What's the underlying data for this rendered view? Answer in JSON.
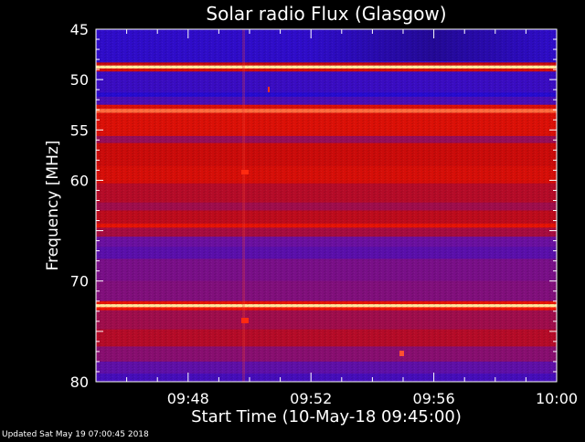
{
  "chart_data": {
    "type": "heatmap",
    "title": "Solar radio Flux (Glasgow)",
    "xlabel": "Start Time (10-May-18 09:45:00)",
    "ylabel": "Frequency [MHz]",
    "x_range": [
      "09:45:00",
      "10:00:00"
    ],
    "y_range_mhz": [
      45,
      80
    ],
    "y_axis_direction": "increasing-downward",
    "xticks": [
      "09:48",
      "09:52",
      "09:56",
      "10:00"
    ],
    "yticks": [
      45,
      50,
      55,
      60,
      65,
      70,
      75,
      80
    ],
    "ytick_labels": [
      "45",
      "50",
      "55",
      "60",
      "",
      "70",
      "",
      "80"
    ],
    "color_scale": {
      "low": "#1a0ad8",
      "mid_low": "#6a10a0",
      "mid": "#c80a0a",
      "high": "#ff1a00",
      "peak": "#ffe79a"
    },
    "bands": [
      {
        "from_mhz": 45.0,
        "to_mhz": 48.3,
        "level": 0.08
      },
      {
        "from_mhz": 48.3,
        "to_mhz": 48.6,
        "level": 0.55
      },
      {
        "from_mhz": 48.6,
        "to_mhz": 48.9,
        "level": 1.0
      },
      {
        "from_mhz": 48.9,
        "to_mhz": 49.2,
        "level": 0.6
      },
      {
        "from_mhz": 49.2,
        "to_mhz": 51.3,
        "level": 0.12
      },
      {
        "from_mhz": 51.3,
        "to_mhz": 51.7,
        "level": 0.04
      },
      {
        "from_mhz": 51.7,
        "to_mhz": 52.5,
        "level": 0.18
      },
      {
        "from_mhz": 52.5,
        "to_mhz": 52.9,
        "level": 0.62
      },
      {
        "from_mhz": 52.9,
        "to_mhz": 53.3,
        "level": 0.85
      },
      {
        "from_mhz": 53.3,
        "to_mhz": 55.6,
        "level": 0.62
      },
      {
        "from_mhz": 55.6,
        "to_mhz": 56.3,
        "level": 0.42
      },
      {
        "from_mhz": 56.3,
        "to_mhz": 58.6,
        "level": 0.56
      },
      {
        "from_mhz": 58.6,
        "to_mhz": 60.3,
        "level": 0.6
      },
      {
        "from_mhz": 60.3,
        "to_mhz": 62.2,
        "level": 0.5
      },
      {
        "from_mhz": 62.2,
        "to_mhz": 63.0,
        "level": 0.44
      },
      {
        "from_mhz": 63.0,
        "to_mhz": 64.3,
        "level": 0.52
      },
      {
        "from_mhz": 64.3,
        "to_mhz": 64.7,
        "level": 0.66
      },
      {
        "from_mhz": 64.7,
        "to_mhz": 65.6,
        "level": 0.46
      },
      {
        "from_mhz": 65.6,
        "to_mhz": 66.6,
        "level": 0.3
      },
      {
        "from_mhz": 66.6,
        "to_mhz": 67.8,
        "level": 0.24
      },
      {
        "from_mhz": 67.8,
        "to_mhz": 70.0,
        "level": 0.34
      },
      {
        "from_mhz": 70.0,
        "to_mhz": 72.0,
        "level": 0.36
      },
      {
        "from_mhz": 72.0,
        "to_mhz": 72.3,
        "level": 0.66
      },
      {
        "from_mhz": 72.3,
        "to_mhz": 72.6,
        "level": 1.0
      },
      {
        "from_mhz": 72.6,
        "to_mhz": 72.9,
        "level": 0.7
      },
      {
        "from_mhz": 72.9,
        "to_mhz": 74.8,
        "level": 0.44
      },
      {
        "from_mhz": 74.8,
        "to_mhz": 76.5,
        "level": 0.5
      },
      {
        "from_mhz": 76.5,
        "to_mhz": 78.0,
        "level": 0.38
      },
      {
        "from_mhz": 78.0,
        "to_mhz": 79.2,
        "level": 0.26
      },
      {
        "from_mhz": 79.2,
        "to_mhz": 80.0,
        "level": 0.16
      }
    ],
    "grid": false,
    "legend": "none"
  },
  "footer": {
    "updated": "Updated Sat May 19 07:00:45 2018"
  }
}
